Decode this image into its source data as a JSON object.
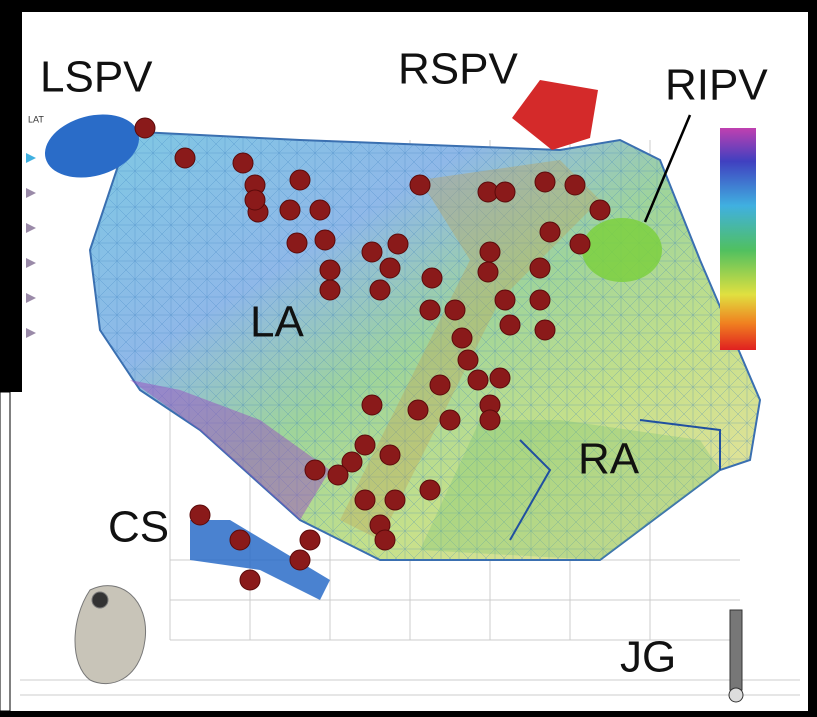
{
  "labels": {
    "lspv": "LSPV",
    "rspv": "RSPV",
    "ripv": "RIPV",
    "la": "LA",
    "ra": "RA",
    "cs": "CS",
    "jg": "JG"
  },
  "legend_title": "LAT"
}
